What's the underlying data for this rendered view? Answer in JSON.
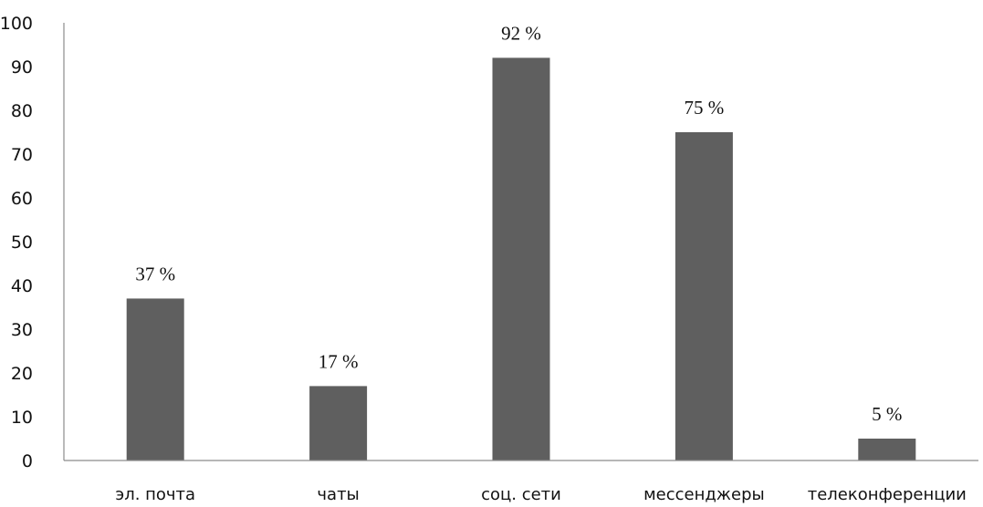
{
  "chart_data": {
    "type": "bar",
    "categories": [
      "эл. почта",
      "чаты",
      "соц. сети",
      "мессенджеры",
      "телеконференции"
    ],
    "values": [
      37,
      17,
      92,
      75,
      5
    ],
    "data_labels": [
      "37 %",
      "17 %",
      "92 %",
      "75 %",
      "5 %"
    ],
    "ylim": [
      0,
      100
    ],
    "yticks": [
      0,
      10,
      20,
      30,
      40,
      50,
      60,
      70,
      80,
      90,
      100
    ],
    "grid": false,
    "legend": "none",
    "bar_color": "#5f5f5f"
  }
}
